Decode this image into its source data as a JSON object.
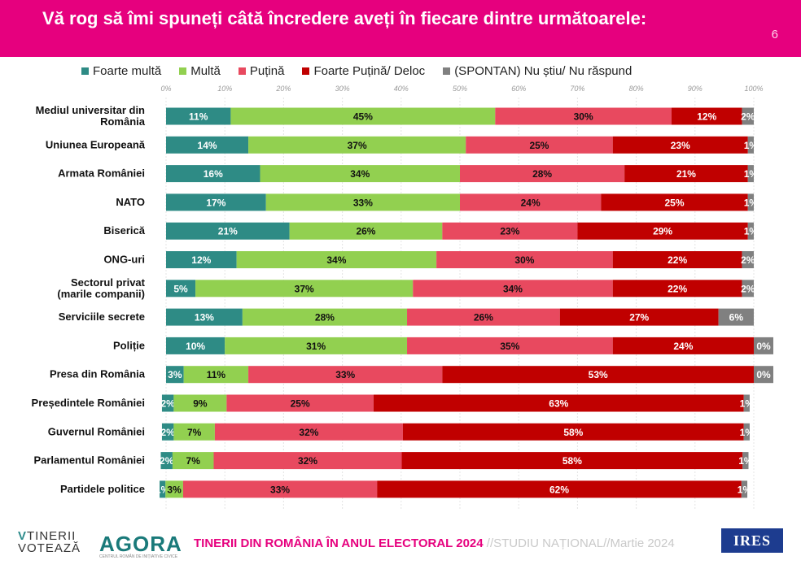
{
  "header": {
    "title": "Vă rog să îmi spuneți câtă încredere aveți în fiecare dintre următoarele:",
    "slide_number": "6"
  },
  "chart_data": {
    "type": "bar",
    "orientation": "horizontal",
    "stacked": true,
    "xlim": [
      0,
      100
    ],
    "x_tick_labels": [
      "0%",
      "10%",
      "20%",
      "30%",
      "40%",
      "50%",
      "60%",
      "70%",
      "80%",
      "90%",
      "100%"
    ],
    "legend_position": "top",
    "categories": [
      "Mediul universitar din România",
      "Uniunea Europeană",
      "Armata României",
      "NATO",
      "Biserică",
      "ONG-uri",
      "Sectorul privat (marile companii)",
      "Serviciile secrete",
      "Poliție",
      "Presa din România",
      "Președintele României",
      "Guvernul României",
      "Parlamentul României",
      "Partidele politice"
    ],
    "series": [
      {
        "name": "Foarte multă",
        "color": "#2e8b85",
        "values": [
          11,
          14,
          16,
          17,
          21,
          12,
          5,
          13,
          10,
          3,
          2,
          2,
          2,
          1
        ]
      },
      {
        "name": "Multă",
        "color": "#92d050",
        "values": [
          45,
          37,
          34,
          33,
          26,
          34,
          37,
          28,
          31,
          11,
          9,
          7,
          7,
          3
        ]
      },
      {
        "name": "Puțină",
        "color": "#e8495f",
        "values": [
          30,
          25,
          28,
          24,
          23,
          30,
          34,
          26,
          35,
          33,
          25,
          32,
          32,
          33
        ]
      },
      {
        "name": "Foarte Puțină/ Deloc",
        "color": "#c00000",
        "values": [
          12,
          23,
          21,
          25,
          29,
          22,
          22,
          27,
          24,
          53,
          63,
          58,
          58,
          62
        ]
      },
      {
        "name": "(SPONTAN) Nu știu/ Nu răspund",
        "color": "#808080",
        "values": [
          2,
          1,
          1,
          1,
          1,
          2,
          2,
          6,
          0,
          0,
          1,
          1,
          1,
          1
        ]
      }
    ],
    "offsets": [
      0,
      0,
      0,
      0,
      0,
      0,
      0,
      0,
      0,
      0,
      -0.7,
      -0.7,
      -0.9,
      -1.1
    ]
  },
  "footer": {
    "brand_tinerii_1": "TINERII",
    "brand_tinerii_2": "VOTEAZĂ",
    "brand_agora": "AGORA",
    "brand_agora_sub": "CENTRUL ROMÂN DE INIȚIATIVE CIVICE",
    "survey_title": "TINERII DIN ROMÂNIA ÎN ANUL ELECTORAL 2024",
    "survey_type": "STUDIU NAȚIONAL",
    "survey_date": "Martie 2024",
    "sep": "//",
    "brand_ires": "IRES"
  }
}
